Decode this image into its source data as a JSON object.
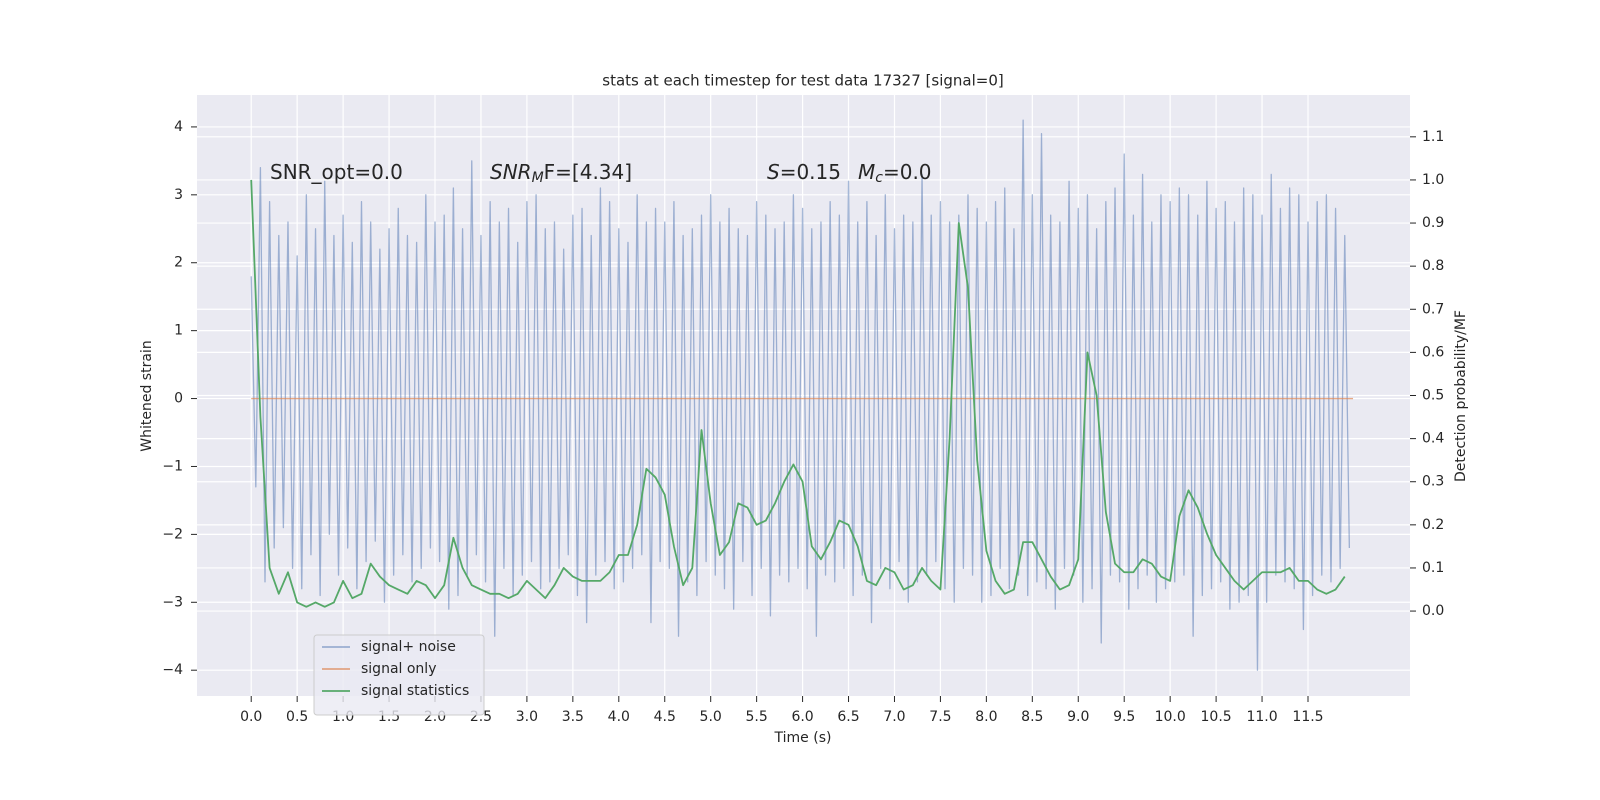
{
  "chart_data": {
    "type": "line",
    "title": "stats at each timestep for test data 17327 [signal=0]",
    "xlabel": "Time (s)",
    "ylabel": "Whitened strain",
    "y2label": "Detection probability/MF",
    "xlim": [
      -0.59,
      12.61
    ],
    "ylim": [
      -4.38,
      4.47
    ],
    "y2lim": [
      -0.197,
      1.197
    ],
    "xticks": [
      {
        "value": 0,
        "label": "0.0"
      },
      0.5,
      {
        "value": 1,
        "label": "1.0"
      },
      1.5,
      {
        "value": 2,
        "label": "2.0"
      },
      2.5,
      {
        "value": 3,
        "label": "3.0"
      },
      3.5,
      {
        "value": 4,
        "label": "4.0"
      },
      4.5,
      {
        "value": 5,
        "label": "5.0"
      },
      5.5,
      {
        "value": 6,
        "label": "6.0"
      },
      6.5,
      {
        "value": 7,
        "label": "7.0"
      },
      7.5,
      {
        "value": 8,
        "label": "8.0"
      },
      8.5,
      {
        "value": 9,
        "label": "9.0"
      },
      9.5,
      {
        "value": 10,
        "label": "10.0"
      },
      10.5,
      {
        "value": 11,
        "label": "11.0"
      },
      11.5
    ],
    "yticks": [
      {
        "value": -4,
        "label": "−4"
      },
      {
        "value": -3,
        "label": "−3"
      },
      {
        "value": -2,
        "label": "−2"
      },
      {
        "value": -1,
        "label": "−1"
      },
      0,
      1,
      2,
      3,
      4
    ],
    "y2ticks": [
      {
        "value": 0,
        "label": "0.0"
      },
      0.1,
      0.2,
      0.3,
      0.4,
      0.5,
      0.6,
      0.7,
      0.8,
      0.9,
      {
        "value": 1,
        "label": "1.0"
      },
      1.1
    ],
    "grid": true,
    "legend": "lower left",
    "annotations": [
      [
        {
          "text": "SNR_opt=0.0"
        }
      ],
      [
        {
          "text": "SNR",
          "style": "italic"
        },
        {
          "text": "M",
          "style": "sub-italic"
        },
        {
          "text": "F=[4.34]"
        }
      ],
      [
        {
          "text": "S",
          "style": "italic"
        },
        {
          "text": "=0.15"
        }
      ],
      [
        {
          "text": "M",
          "style": "italic"
        },
        {
          "text": "c",
          "style": "sub-italic"
        },
        {
          "text": "=0.0"
        }
      ]
    ],
    "series": [
      {
        "name": "signal+ noise",
        "color": "#4c72b0",
        "alpha": 0.5,
        "x": [
          0,
          0.05,
          0.1,
          0.15,
          0.2,
          0.25,
          0.3,
          0.35,
          0.4,
          0.45,
          0.5,
          0.55,
          0.6,
          0.65,
          0.7,
          0.75,
          0.8,
          0.85,
          0.9,
          0.95,
          1,
          1.05,
          1.1,
          1.15,
          1.2,
          1.25,
          1.3,
          1.35,
          1.4,
          1.45,
          1.5,
          1.55,
          1.6,
          1.65,
          1.7,
          1.75,
          1.8,
          1.85,
          1.9,
          1.95,
          2,
          2.05,
          2.1,
          2.15,
          2.2,
          2.25,
          2.3,
          2.35,
          2.4,
          2.45,
          2.5,
          2.55,
          2.6,
          2.65,
          2.7,
          2.75,
          2.8,
          2.85,
          2.9,
          2.95,
          3,
          3.05,
          3.1,
          3.15,
          3.2,
          3.25,
          3.3,
          3.35,
          3.4,
          3.45,
          3.5,
          3.55,
          3.6,
          3.65,
          3.7,
          3.75,
          3.8,
          3.85,
          3.9,
          3.95,
          4,
          4.05,
          4.1,
          4.15,
          4.2,
          4.25,
          4.3,
          4.35,
          4.4,
          4.45,
          4.5,
          4.55,
          4.6,
          4.65,
          4.7,
          4.75,
          4.8,
          4.85,
          4.9,
          4.95,
          5,
          5.05,
          5.1,
          5.15,
          5.2,
          5.25,
          5.3,
          5.35,
          5.4,
          5.45,
          5.5,
          5.55,
          5.6,
          5.65,
          5.7,
          5.75,
          5.8,
          5.85,
          5.9,
          5.95,
          6,
          6.05,
          6.1,
          6.15,
          6.2,
          6.25,
          6.3,
          6.35,
          6.4,
          6.45,
          6.5,
          6.55,
          6.6,
          6.65,
          6.7,
          6.75,
          6.8,
          6.85,
          6.9,
          6.95,
          7,
          7.05,
          7.1,
          7.15,
          7.2,
          7.25,
          7.3,
          7.35,
          7.4,
          7.45,
          7.5,
          7.55,
          7.6,
          7.65,
          7.7,
          7.75,
          7.8,
          7.85,
          7.9,
          7.95,
          8,
          8.05,
          8.1,
          8.15,
          8.2,
          8.25,
          8.3,
          8.35,
          8.4,
          8.45,
          8.5,
          8.55,
          8.6,
          8.65,
          8.7,
          8.75,
          8.8,
          8.85,
          8.9,
          8.95,
          9,
          9.05,
          9.1,
          9.15,
          9.2,
          9.25,
          9.3,
          9.35,
          9.4,
          9.45,
          9.5,
          9.55,
          9.6,
          9.65,
          9.7,
          9.75,
          9.8,
          9.85,
          9.9,
          9.95,
          10,
          10.05,
          10.1,
          10.15,
          10.2,
          10.25,
          10.3,
          10.35,
          10.4,
          10.45,
          10.5,
          10.55,
          10.6,
          10.65,
          10.7,
          10.75,
          10.8,
          10.85,
          10.9,
          10.95,
          11,
          11.05,
          11.1,
          11.15,
          11.2,
          11.25,
          11.3,
          11.35,
          11.4,
          11.45,
          11.5,
          11.55,
          11.6,
          11.65,
          11.7,
          11.75,
          11.8,
          11.85,
          11.9,
          11.95
        ],
        "values": [
          1.8,
          -1.3,
          3.4,
          -2.7,
          2.9,
          -2.2,
          2.4,
          -1.9,
          2.6,
          -2.5,
          2.1,
          -2.8,
          3.0,
          -2.3,
          2.5,
          -2.9,
          3.2,
          -2.0,
          2.4,
          -2.6,
          2.7,
          -2.2,
          2.3,
          -2.8,
          2.9,
          -2.4,
          2.6,
          -2.1,
          2.2,
          -3.0,
          2.5,
          -2.6,
          2.8,
          -2.3,
          2.4,
          -2.7,
          2.3,
          -2.5,
          3.0,
          -2.2,
          2.6,
          -2.4,
          2.7,
          -3.1,
          3.1,
          -2.9,
          2.5,
          -2.6,
          3.5,
          -2.3,
          2.4,
          -2.7,
          2.9,
          -3.5,
          2.6,
          -2.5,
          2.8,
          -2.9,
          2.3,
          -2.6,
          2.9,
          -2.4,
          3.0,
          -2.8,
          2.5,
          -2.7,
          2.6,
          -2.5,
          2.2,
          -2.3,
          2.7,
          -2.9,
          2.8,
          -3.3,
          2.4,
          -2.6,
          3.1,
          -2.4,
          2.9,
          -2.8,
          2.5,
          -2.7,
          2.3,
          -2.5,
          3.0,
          -2.3,
          2.6,
          -3.3,
          2.8,
          -2.4,
          2.6,
          -2.5,
          2.9,
          -3.5,
          2.4,
          -2.7,
          2.5,
          -2.9,
          2.7,
          -2.4,
          3.0,
          -2.6,
          2.6,
          -2.8,
          2.8,
          -3.1,
          2.5,
          -2.4,
          2.4,
          -2.9,
          2.9,
          -2.5,
          2.7,
          -3.2,
          2.5,
          -2.6,
          2.6,
          -2.7,
          3.0,
          -2.5,
          2.8,
          -2.8,
          2.5,
          -3.5,
          2.6,
          -2.6,
          2.9,
          -2.7,
          2.7,
          -2.5,
          3.2,
          -2.9,
          2.6,
          -2.6,
          2.9,
          -3.3,
          2.4,
          -2.5,
          3.0,
          -2.8,
          2.5,
          -2.4,
          2.7,
          -3.0,
          2.6,
          -2.7,
          3.3,
          -2.6,
          2.7,
          -2.4,
          2.9,
          -2.8,
          2.6,
          -3.0,
          2.7,
          -2.5,
          3.0,
          -2.6,
          2.8,
          -3.0,
          2.6,
          -2.9,
          2.9,
          -2.5,
          3.1,
          -2.8,
          2.5,
          -2.6,
          4.1,
          -2.9,
          3.0,
          -2.7,
          3.9,
          -2.8,
          2.7,
          -3.1,
          2.6,
          -2.5,
          3.2,
          -2.6,
          2.8,
          -3.0,
          3.0,
          -2.8,
          2.5,
          -3.6,
          2.9,
          -2.6,
          3.1,
          -2.7,
          3.6,
          -3.1,
          2.7,
          -2.8,
          3.3,
          -2.6,
          2.6,
          -3.0,
          3.0,
          -2.8,
          2.9,
          -2.7,
          3.1,
          -2.6,
          3.0,
          -3.5,
          2.7,
          -2.9,
          3.2,
          -2.8,
          2.8,
          -2.7,
          2.9,
          -3.1,
          2.6,
          -3.0,
          3.1,
          -2.9,
          3.0,
          -4.0,
          2.7,
          -3.0,
          3.3,
          -2.6,
          2.8,
          -2.7,
          3.1,
          -2.8,
          3.0,
          -3.4,
          2.6,
          -2.9,
          2.9,
          -2.6,
          3.0,
          -2.7,
          2.8,
          -2.5,
          2.4,
          -2.2
        ]
      },
      {
        "name": "signal only",
        "color": "#dd8452",
        "alpha": 0.7,
        "x": [
          0,
          11.99
        ],
        "values": [
          0,
          0
        ]
      },
      {
        "name": "signal statistics",
        "color": "#55a868",
        "alpha": 1,
        "axis": "y2",
        "x": [
          0,
          0.1,
          0.2,
          0.3,
          0.4,
          0.5,
          0.6,
          0.7,
          0.8,
          0.9,
          1,
          1.1,
          1.2,
          1.3,
          1.4,
          1.5,
          1.6,
          1.7,
          1.8,
          1.9,
          2,
          2.1,
          2.2,
          2.3,
          2.4,
          2.5,
          2.6,
          2.7,
          2.8,
          2.9,
          3,
          3.1,
          3.2,
          3.3,
          3.4,
          3.5,
          3.6,
          3.7,
          3.8,
          3.9,
          4,
          4.1,
          4.2,
          4.3,
          4.4,
          4.5,
          4.6,
          4.7,
          4.8,
          4.9,
          5,
          5.1,
          5.2,
          5.3,
          5.4,
          5.5,
          5.6,
          5.7,
          5.8,
          5.9,
          6,
          6.1,
          6.2,
          6.3,
          6.4,
          6.5,
          6.6,
          6.7,
          6.8,
          6.9,
          7,
          7.1,
          7.2,
          7.3,
          7.4,
          7.5,
          7.6,
          7.7,
          7.8,
          7.9,
          8,
          8.1,
          8.2,
          8.3,
          8.4,
          8.5,
          8.6,
          8.7,
          8.8,
          8.9,
          9,
          9.1,
          9.2,
          9.3,
          9.4,
          9.5,
          9.6,
          9.7,
          9.8,
          9.9,
          10,
          10.1,
          10.2,
          10.3,
          10.4,
          10.5,
          10.6,
          10.7,
          10.8,
          10.9,
          11,
          11.1,
          11.2,
          11.3,
          11.4,
          11.5,
          11.6,
          11.7,
          11.8,
          11.9
        ],
        "values": [
          1.0,
          0.45,
          0.1,
          0.04,
          0.09,
          0.02,
          0.01,
          0.02,
          0.01,
          0.02,
          0.07,
          0.03,
          0.04,
          0.11,
          0.08,
          0.06,
          0.05,
          0.04,
          0.07,
          0.06,
          0.03,
          0.06,
          0.17,
          0.1,
          0.06,
          0.05,
          0.04,
          0.04,
          0.03,
          0.04,
          0.07,
          0.05,
          0.03,
          0.06,
          0.1,
          0.08,
          0.07,
          0.07,
          0.07,
          0.09,
          0.13,
          0.13,
          0.2,
          0.33,
          0.31,
          0.27,
          0.15,
          0.06,
          0.1,
          0.42,
          0.25,
          0.13,
          0.16,
          0.25,
          0.24,
          0.2,
          0.21,
          0.25,
          0.3,
          0.34,
          0.3,
          0.15,
          0.12,
          0.16,
          0.21,
          0.2,
          0.15,
          0.07,
          0.06,
          0.1,
          0.09,
          0.05,
          0.06,
          0.1,
          0.07,
          0.05,
          0.4,
          0.9,
          0.75,
          0.35,
          0.14,
          0.07,
          0.04,
          0.05,
          0.16,
          0.16,
          0.12,
          0.08,
          0.05,
          0.06,
          0.12,
          0.6,
          0.5,
          0.23,
          0.11,
          0.09,
          0.09,
          0.12,
          0.11,
          0.08,
          0.07,
          0.22,
          0.28,
          0.24,
          0.18,
          0.13,
          0.1,
          0.07,
          0.05,
          0.07,
          0.09,
          0.09,
          0.09,
          0.1,
          0.07,
          0.07,
          0.05,
          0.04,
          0.05,
          0.08
        ]
      }
    ]
  }
}
